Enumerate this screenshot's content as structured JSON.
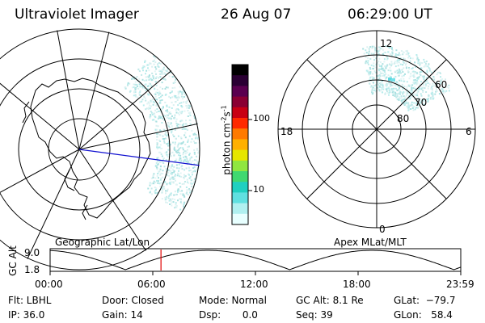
{
  "header": {
    "title": "Ultraviolet Imager",
    "date": "26 Aug 07",
    "time": "06:29:00 UT"
  },
  "left_map": {
    "label": "Geographic Lat/Lon"
  },
  "right_map": {
    "label": "Apex MLat/MLT",
    "mlt_labels": [
      "12",
      "18",
      "6",
      "0"
    ],
    "mlat_labels": [
      "60",
      "70",
      "80"
    ]
  },
  "colorbar": {
    "unit_label": "photon cm",
    "unit_exp1": "-2",
    "unit_s": "s",
    "unit_exp2": "-1",
    "tick_labels": [
      "100",
      "10"
    ],
    "colors": [
      "#000000",
      "#2a0033",
      "#5a004f",
      "#8a0033",
      "#c80014",
      "#ff2a00",
      "#ff7a00",
      "#ffb000",
      "#e6e600",
      "#90e640",
      "#40d870",
      "#20d0c0",
      "#60e0e0",
      "#b0f0f0",
      "#e8ffff"
    ]
  },
  "altitude_plot": {
    "ylabel": "GC Alt",
    "ytick_max": "9.0",
    "ytick_min": "1.8",
    "x_ticks": [
      "00:00",
      "06:00",
      "12:00",
      "18:00",
      "23:59"
    ],
    "marker_time_hours": 6.48
  },
  "status": {
    "flt": "Flt: LBHL",
    "ip": "IP: 36.0",
    "door": "Door: Closed",
    "gain": "Gain: 14",
    "mode": "Mode: Normal",
    "dsp": "Dsp:       0.0",
    "gc_alt": "GC Alt: 8.1 Re",
    "seq": "Seq: 39",
    "glat": "GLat:  −79.7",
    "glon": "GLon:   58.4"
  }
}
